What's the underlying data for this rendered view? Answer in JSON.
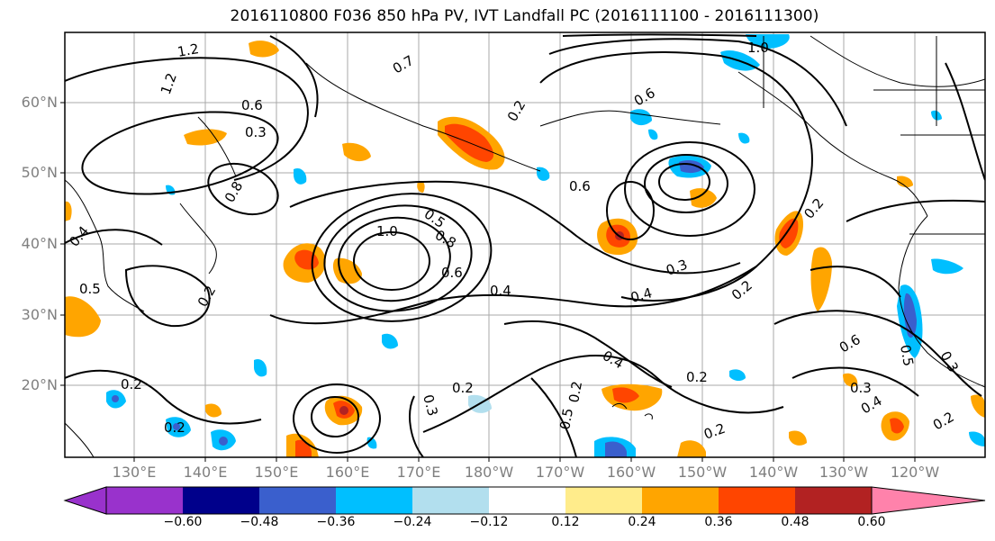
{
  "title": "2016110800 F036 850 hPa PV, IVT Landfall PC (2016111100 - 2016111300)",
  "lat_labels": [
    "60°N",
    "50°N",
    "40°N",
    "30°N",
    "20°N"
  ],
  "lon_labels": [
    "130°E",
    "140°E",
    "150°E",
    "160°E",
    "170°E",
    "180°W",
    "170°W",
    "160°W",
    "150°W",
    "140°W",
    "130°W",
    "120°W"
  ],
  "contour_labels": [
    "1.2",
    "1.2",
    "0.6",
    "0.3",
    "0.7",
    "0.2",
    "0.8",
    "0.4",
    "1.0",
    "0.5",
    "0.8",
    "0.6",
    "0.4",
    "0.3",
    "0.6",
    "0.2",
    "0.4",
    "0.5",
    "0.2",
    "0.2",
    "0.2",
    "0.2",
    "0.2",
    "0.3",
    "0.6",
    "0.2",
    "0.2",
    "0.3",
    "0.4",
    "0.2",
    "0.5",
    "0.6",
    "0.4",
    "0.2",
    "0.5",
    "0.3",
    "1.0"
  ],
  "colorbar": {
    "colors": [
      "#9932cc",
      "#00008b",
      "#3a5fcd",
      "#00bfff",
      "#b2dfee",
      "#ffffff",
      "#ffec8b",
      "#ffa500",
      "#ff4500",
      "#b22222",
      "#ff82ab"
    ],
    "tick_labels": [
      "−0.60",
      "−0.48",
      "−0.36",
      "−0.24",
      "−0.12",
      "0.12",
      "0.24",
      "0.36",
      "0.48",
      "0.60"
    ]
  }
}
